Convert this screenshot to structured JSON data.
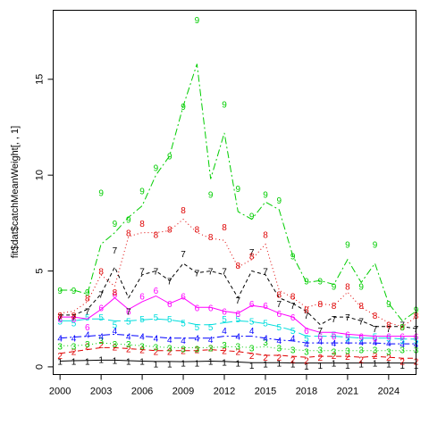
{
  "chart_data": {
    "type": "line",
    "title": "",
    "xlabel": "",
    "ylabel": "fit$dat$catchMeanWeight[, , 1]",
    "xlim": [
      1999.5,
      2026
    ],
    "ylim": [
      -0.4,
      18.6
    ],
    "x_ticks": [
      2000,
      2003,
      2006,
      2009,
      2012,
      2015,
      2018,
      2021,
      2024
    ],
    "y_ticks": [
      0,
      5,
      10,
      15
    ],
    "grid": false,
    "legend": "none",
    "x": [
      2000,
      2001,
      2002,
      2003,
      2004,
      2005,
      2006,
      2007,
      2008,
      2009,
      2010,
      2011,
      2012,
      2013,
      2014,
      2015,
      2016,
      2017,
      2018,
      2019,
      2020,
      2021,
      2022,
      2023,
      2024,
      2025,
      2026
    ],
    "series": [
      {
        "point_label": "1",
        "color": "#000000",
        "dash": "",
        "observed": [
          0.3,
          0.3,
          0.3,
          0.4,
          0.35,
          0.3,
          0.3,
          0.15,
          0.15,
          0.2,
          0.2,
          0.3,
          0.25,
          0.2,
          0.1,
          0.15,
          0.2,
          0.15,
          0.05,
          0.1,
          0.2,
          0.1,
          0.15,
          0.2,
          0.15,
          0.1,
          0.1
        ],
        "fitted": [
          0.3,
          0.32,
          0.33,
          0.35,
          0.35,
          0.32,
          0.3,
          0.28,
          0.28,
          0.27,
          0.28,
          0.3,
          0.28,
          0.25,
          0.22,
          0.22,
          0.22,
          0.2,
          0.2,
          0.2,
          0.2,
          0.2,
          0.2,
          0.2,
          0.2,
          0.2,
          0.2
        ]
      },
      {
        "point_label": "2",
        "color": "#df0000",
        "dash": "6,4",
        "observed": [
          0.6,
          0.8,
          1.1,
          1.15,
          1.05,
          0.95,
          0.9,
          0.8,
          0.8,
          0.85,
          0.9,
          1.0,
          0.85,
          0.8,
          0.6,
          0.5,
          0.5,
          0.4,
          0.35,
          0.5,
          0.6,
          0.55,
          0.4,
          0.6,
          0.5,
          0.3,
          0.3
        ],
        "fitted": [
          0.7,
          0.8,
          0.9,
          1.0,
          1.0,
          0.95,
          0.9,
          0.85,
          0.85,
          0.85,
          0.85,
          0.9,
          0.85,
          0.8,
          0.7,
          0.6,
          0.6,
          0.55,
          0.5,
          0.55,
          0.55,
          0.55,
          0.5,
          0.55,
          0.5,
          0.45,
          0.45
        ]
      },
      {
        "point_label": "3",
        "color": "#00cd00",
        "dash": "1,3",
        "observed": [
          1.1,
          1.1,
          1.2,
          1.4,
          1.2,
          1.2,
          1.1,
          1.05,
          1.0,
          0.95,
          0.95,
          1.0,
          1.15,
          1.1,
          1.0,
          1.3,
          1.0,
          0.9,
          0.8,
          0.9,
          0.8,
          0.85,
          0.9,
          0.9,
          0.8,
          0.9,
          0.9
        ],
        "fitted": [
          1.1,
          1.1,
          1.15,
          1.25,
          1.2,
          1.15,
          1.1,
          1.05,
          1.0,
          1.0,
          1.0,
          1.0,
          1.05,
          1.05,
          1.0,
          1.05,
          0.95,
          0.9,
          0.85,
          0.85,
          0.85,
          0.85,
          0.85,
          0.85,
          0.85,
          0.85,
          0.85
        ]
      },
      {
        "point_label": "4",
        "color": "#0000ff",
        "dash": "8,3,2,3",
        "observed": [
          1.5,
          1.5,
          1.7,
          1.6,
          1.9,
          1.6,
          1.6,
          1.5,
          1.45,
          1.4,
          1.5,
          1.45,
          1.9,
          1.6,
          1.9,
          1.5,
          1.4,
          1.5,
          1.2,
          1.35,
          1.25,
          1.35,
          1.3,
          1.3,
          1.25,
          1.2,
          1.2
        ],
        "fitted": [
          1.5,
          1.55,
          1.6,
          1.65,
          1.7,
          1.65,
          1.6,
          1.55,
          1.5,
          1.5,
          1.5,
          1.5,
          1.6,
          1.6,
          1.6,
          1.5,
          1.4,
          1.35,
          1.25,
          1.25,
          1.25,
          1.25,
          1.25,
          1.25,
          1.2,
          1.2,
          1.2
        ]
      },
      {
        "point_label": "5",
        "color": "#00dddd",
        "dash": "14,4",
        "observed": [
          2.4,
          2.3,
          2.6,
          2.6,
          2.2,
          2.4,
          2.5,
          2.6,
          2.5,
          2.3,
          2.1,
          2.1,
          2.5,
          2.5,
          2.4,
          2.3,
          2.1,
          1.9,
          1.5,
          1.6,
          1.7,
          1.5,
          1.5,
          1.6,
          1.5,
          1.4,
          1.4
        ],
        "fitted": [
          2.4,
          2.4,
          2.5,
          2.5,
          2.4,
          2.4,
          2.45,
          2.5,
          2.45,
          2.35,
          2.2,
          2.2,
          2.3,
          2.4,
          2.35,
          2.25,
          2.1,
          1.9,
          1.6,
          1.6,
          1.6,
          1.55,
          1.5,
          1.5,
          1.5,
          1.45,
          1.45
        ]
      },
      {
        "point_label": "6",
        "color": "#ff00ff",
        "dash": "",
        "observed": [
          2.5,
          2.5,
          2.1,
          3.1,
          3.8,
          2.9,
          3.7,
          4.0,
          3.3,
          3.7,
          3.1,
          3.1,
          2.9,
          2.8,
          3.3,
          3.2,
          2.8,
          2.6,
          1.9,
          1.6,
          1.6,
          1.7,
          1.6,
          1.5,
          1.6,
          1.6,
          1.6
        ],
        "fitted": [
          2.6,
          2.6,
          2.5,
          3.0,
          3.6,
          3.0,
          3.4,
          3.7,
          3.3,
          3.6,
          3.1,
          3.1,
          2.9,
          2.8,
          3.2,
          3.1,
          2.8,
          2.6,
          2.0,
          1.8,
          1.8,
          1.7,
          1.65,
          1.6,
          1.6,
          1.6,
          1.6
        ]
      },
      {
        "point_label": "7",
        "color": "#000000",
        "dash": "4,3",
        "observed": [
          2.6,
          2.6,
          2.9,
          3.8,
          6.1,
          2.9,
          5.0,
          5.0,
          4.5,
          5.9,
          4.9,
          5.0,
          5.0,
          3.5,
          6.0,
          5.0,
          3.3,
          3.2,
          2.7,
          1.9,
          2.5,
          2.6,
          2.4,
          2.0,
          2.0,
          2.2,
          2.0
        ],
        "fitted": [
          2.7,
          2.7,
          3.0,
          3.8,
          5.2,
          3.6,
          4.8,
          5.0,
          4.5,
          5.4,
          4.9,
          5.0,
          4.8,
          3.6,
          5.0,
          4.8,
          3.6,
          3.3,
          2.9,
          2.2,
          2.6,
          2.6,
          2.4,
          2.1,
          2.1,
          2.1,
          2.0
        ]
      },
      {
        "point_label": "8",
        "color": "#df0000",
        "dash": "1,3",
        "observed": [
          2.7,
          2.7,
          3.6,
          5.0,
          3.9,
          7.0,
          7.5,
          6.9,
          7.2,
          8.2,
          7.2,
          6.8,
          7.3,
          5.3,
          5.8,
          6.9,
          3.8,
          3.7,
          3.0,
          3.3,
          3.2,
          4.2,
          3.2,
          2.7,
          2.2,
          2.1,
          2.7
        ],
        "fitted": [
          2.8,
          2.9,
          3.4,
          4.8,
          4.2,
          6.8,
          7.0,
          7.0,
          7.1,
          7.7,
          7.0,
          6.7,
          6.6,
          5.2,
          5.6,
          6.4,
          4.0,
          3.6,
          3.1,
          3.3,
          3.2,
          3.9,
          3.1,
          2.7,
          2.3,
          2.1,
          2.6
        ]
      },
      {
        "point_label": "9",
        "color": "#00cd00",
        "dash": "8,3,2,3",
        "observed": [
          4.0,
          4.0,
          3.9,
          9.1,
          7.5,
          7.7,
          9.2,
          10.4,
          11.0,
          13.6,
          18.1,
          9.0,
          13.7,
          9.3,
          7.9,
          9.0,
          8.7,
          5.8,
          4.5,
          4.5,
          4.2,
          6.4,
          4.2,
          6.4,
          3.3,
          2.1,
          3.0
        ],
        "fitted": [
          4.0,
          4.0,
          3.8,
          6.4,
          7.0,
          7.8,
          8.4,
          10.0,
          11.0,
          13.6,
          15.8,
          9.8,
          12.2,
          8.1,
          7.7,
          8.6,
          8.2,
          5.8,
          4.4,
          4.5,
          4.3,
          5.6,
          4.4,
          5.4,
          3.3,
          2.4,
          2.9
        ]
      }
    ]
  }
}
